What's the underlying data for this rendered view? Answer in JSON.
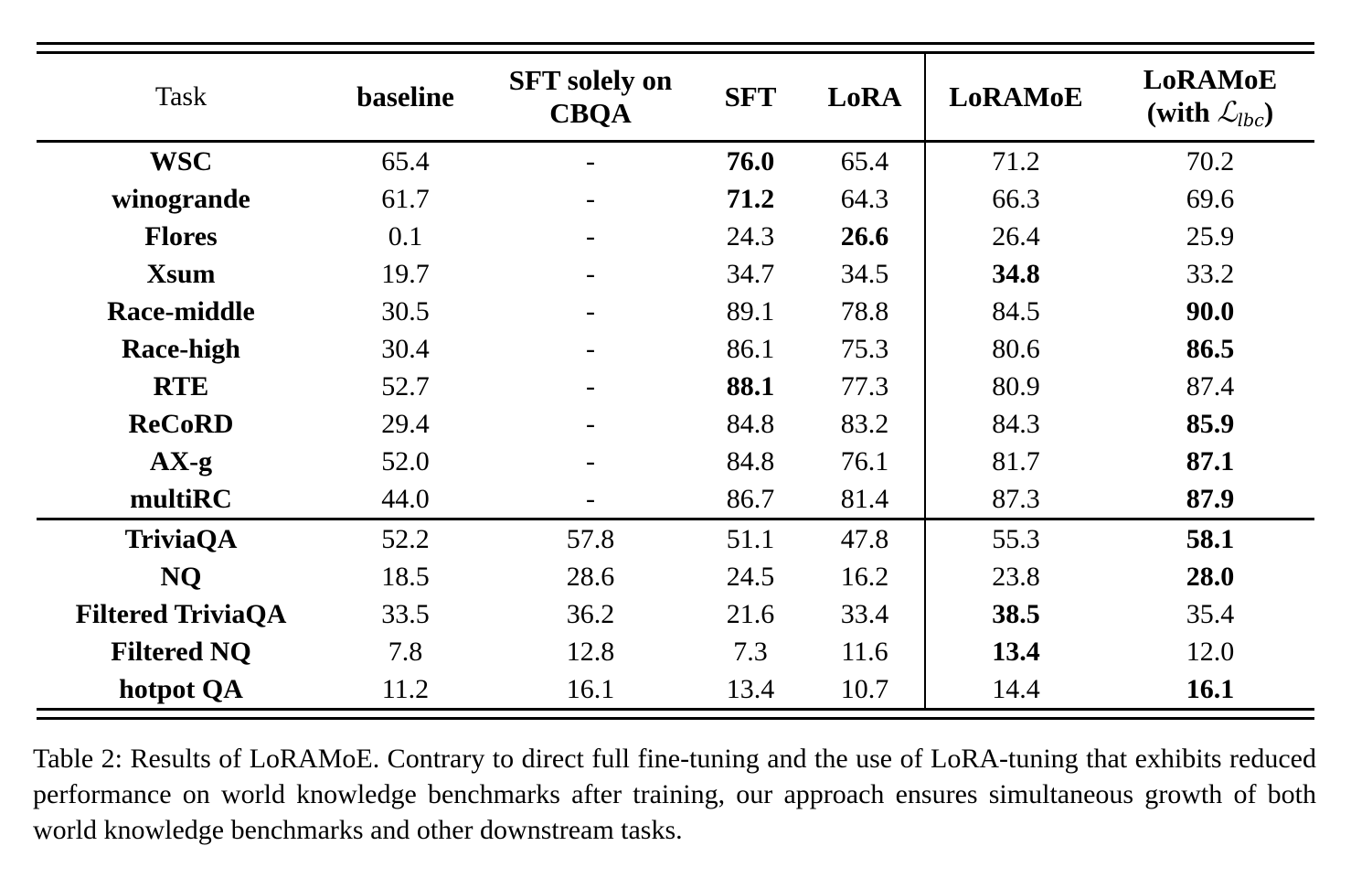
{
  "table": {
    "header": {
      "task": "Task",
      "baseline": "baseline",
      "cbqa_line1": "SFT solely on",
      "cbqa_line2": "CBQA",
      "sft": "SFT",
      "lora": "LoRA",
      "loramoe": "LoRAMoE",
      "loramoe_lbc_line1": "LoRAMoE",
      "loramoe_lbc_prefix": "(with ",
      "loramoe_lbc_math": "ℒ",
      "loramoe_lbc_sub": "lbc",
      "loramoe_lbc_suffix": ")"
    },
    "value_columns": [
      "baseline",
      "SFT solely on CBQA",
      "SFT",
      "LoRA",
      "LoRAMoE",
      "LoRAMoE (with Llbc)"
    ],
    "groups": [
      {
        "id": "downstream",
        "rows": [
          {
            "task": "WSC",
            "values": [
              "65.4",
              "-",
              "76.0",
              "65.4",
              "71.2",
              "70.2"
            ],
            "bold": [
              2
            ]
          },
          {
            "task": "winogrande",
            "values": [
              "61.7",
              "-",
              "71.2",
              "64.3",
              "66.3",
              "69.6"
            ],
            "bold": [
              2
            ]
          },
          {
            "task": "Flores",
            "values": [
              "0.1",
              "-",
              "24.3",
              "26.6",
              "26.4",
              "25.9"
            ],
            "bold": [
              3
            ]
          },
          {
            "task": "Xsum",
            "values": [
              "19.7",
              "-",
              "34.7",
              "34.5",
              "34.8",
              "33.2"
            ],
            "bold": [
              4
            ]
          },
          {
            "task": "Race-middle",
            "values": [
              "30.5",
              "-",
              "89.1",
              "78.8",
              "84.5",
              "90.0"
            ],
            "bold": [
              5
            ]
          },
          {
            "task": "Race-high",
            "values": [
              "30.4",
              "-",
              "86.1",
              "75.3",
              "80.6",
              "86.5"
            ],
            "bold": [
              5
            ]
          },
          {
            "task": "RTE",
            "values": [
              "52.7",
              "-",
              "88.1",
              "77.3",
              "80.9",
              "87.4"
            ],
            "bold": [
              2
            ]
          },
          {
            "task": "ReCoRD",
            "values": [
              "29.4",
              "-",
              "84.8",
              "83.2",
              "84.3",
              "85.9"
            ],
            "bold": [
              5
            ]
          },
          {
            "task": "AX-g",
            "values": [
              "52.0",
              "-",
              "84.8",
              "76.1",
              "81.7",
              "87.1"
            ],
            "bold": [
              5
            ]
          },
          {
            "task": "multiRC",
            "values": [
              "44.0",
              "-",
              "86.7",
              "81.4",
              "87.3",
              "87.9"
            ],
            "bold": [
              5
            ]
          }
        ]
      },
      {
        "id": "worldknowledge",
        "rows": [
          {
            "task": "TriviaQA",
            "values": [
              "52.2",
              "57.8",
              "51.1",
              "47.8",
              "55.3",
              "58.1"
            ],
            "bold": [
              5
            ]
          },
          {
            "task": "NQ",
            "values": [
              "18.5",
              "28.6",
              "24.5",
              "16.2",
              "23.8",
              "28.0"
            ],
            "bold": [
              5
            ]
          },
          {
            "task": "Filtered TriviaQA",
            "values": [
              "33.5",
              "36.2",
              "21.6",
              "33.4",
              "38.5",
              "35.4"
            ],
            "bold": [
              4
            ]
          },
          {
            "task": "Filtered NQ",
            "values": [
              "7.8",
              "12.8",
              "7.3",
              "11.6",
              "13.4",
              "12.0"
            ],
            "bold": [
              4
            ]
          },
          {
            "task": "hotpot QA",
            "values": [
              "11.2",
              "16.1",
              "13.4",
              "10.7",
              "14.4",
              "16.1"
            ],
            "bold": [
              5
            ]
          }
        ]
      }
    ]
  },
  "caption": {
    "text": "Table 2: Results of LoRAMoE. Contrary to direct full fine-tuning and the use of LoRA-tuning that exhibits reduced performance on world knowledge benchmarks after training, our approach ensures simultaneous growth of both world knowledge benchmarks and other downstream tasks."
  }
}
